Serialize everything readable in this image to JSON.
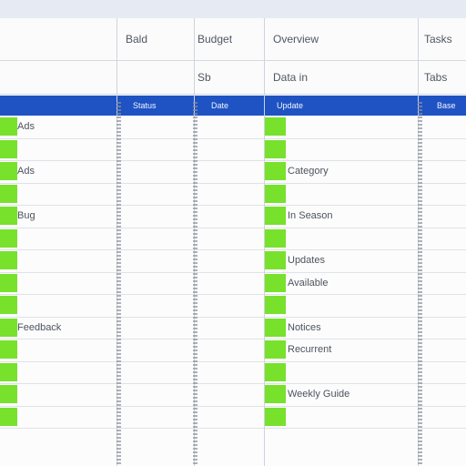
{
  "header": {
    "row1": [
      "Bald",
      "Budget",
      "Overview",
      "",
      "Tasks"
    ],
    "row2": [
      "",
      "Sb",
      "Data in",
      "",
      "Tabs"
    ]
  },
  "band": [
    "",
    "Status",
    "Date",
    "Update",
    "Base"
  ],
  "rows": [
    {
      "name": "Ads",
      "note": ""
    },
    {
      "name": "",
      "note": ""
    },
    {
      "name": "Ads",
      "note": "Category"
    },
    {
      "name": "",
      "note": ""
    },
    {
      "name": "Bug",
      "note": "In Season"
    },
    {
      "name": "",
      "note": ""
    },
    {
      "name": "",
      "note": "Updates"
    },
    {
      "name": "",
      "note": "Available"
    },
    {
      "name": "",
      "note": ""
    },
    {
      "name": "Feedback",
      "note": "Notices"
    },
    {
      "name": "",
      "note": "Recurrent"
    },
    {
      "name": "",
      "note": ""
    },
    {
      "name": "",
      "note": "Weekly Guide"
    },
    {
      "name": "",
      "note": ""
    }
  ],
  "colors": {
    "band": "#1f53c4",
    "status_green": "#77e12c",
    "background": "#fcfcfd"
  }
}
